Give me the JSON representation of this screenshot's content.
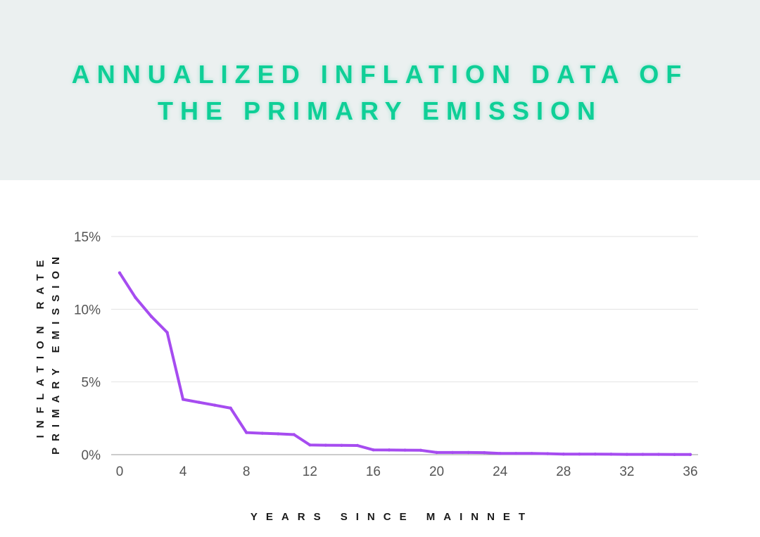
{
  "title": {
    "line1": "ANNUALIZED INFLATION DATA OF",
    "line2": "THE PRIMARY EMISSION"
  },
  "colors": {
    "title": "#0fcf97",
    "header_bg": "#ebf0f0",
    "line": "#a64cf0",
    "grid": "#e2e2e2",
    "tick_text": "#555555"
  },
  "chart_data": {
    "type": "line",
    "xlabel": "YEARS SINCE MAINNET",
    "ylabel_line1": "INFLATION RATE",
    "ylabel_line2": "PRIMARY EMISSION",
    "xlim": [
      0,
      36
    ],
    "ylim": [
      0,
      15
    ],
    "x_ticks": [
      0,
      4,
      8,
      12,
      16,
      20,
      24,
      28,
      32,
      36
    ],
    "y_ticks": [
      0,
      5,
      10,
      15
    ],
    "y_tick_labels": [
      "0%",
      "5%",
      "10%",
      "15%"
    ],
    "grid": true,
    "series": [
      {
        "x": [
          0,
          1,
          2,
          3,
          4,
          5,
          6,
          7,
          8,
          9,
          10,
          11,
          12,
          13,
          14,
          15,
          16,
          17,
          18,
          19,
          20,
          21,
          22,
          23,
          24,
          25,
          26,
          27,
          28,
          29,
          30,
          31,
          32,
          33,
          34,
          35,
          36
        ],
        "y": [
          12.5,
          10.8,
          9.5,
          8.4,
          3.8,
          3.6,
          3.4,
          3.2,
          1.52,
          1.47,
          1.43,
          1.38,
          0.67,
          0.65,
          0.64,
          0.63,
          0.33,
          0.32,
          0.31,
          0.3,
          0.15,
          0.15,
          0.15,
          0.14,
          0.08,
          0.08,
          0.08,
          0.07,
          0.04,
          0.04,
          0.04,
          0.03,
          0.02,
          0.02,
          0.02,
          0.01,
          0.01
        ]
      }
    ]
  }
}
